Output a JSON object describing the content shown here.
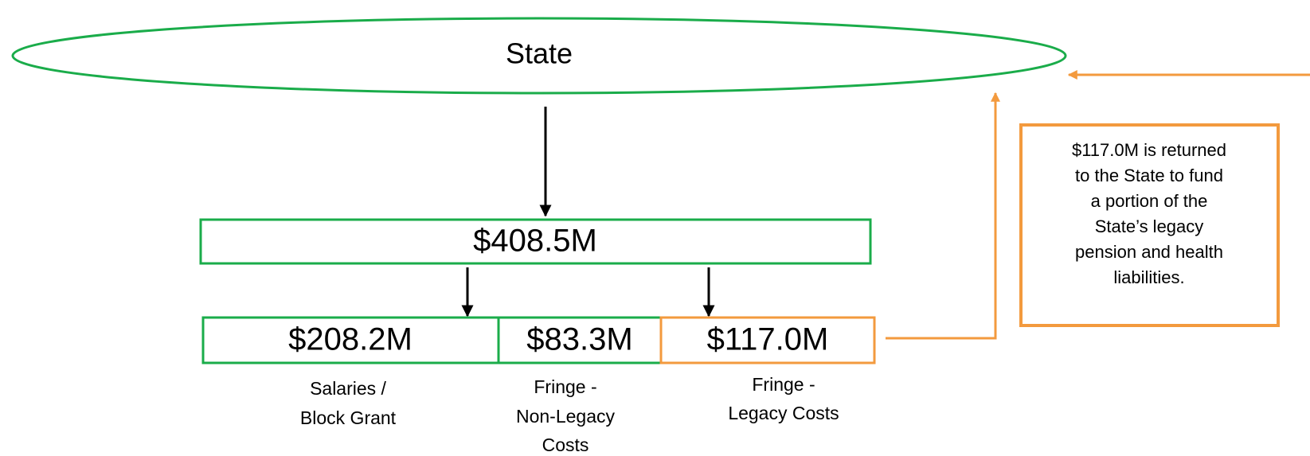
{
  "nodes": [
    {
      "id": "state",
      "label": "State"
    },
    {
      "id": "total",
      "label": "$408.5M"
    },
    {
      "id": "salaries",
      "label": "$208.2M",
      "caption": [
        "Salaries /",
        "Block Grant"
      ]
    },
    {
      "id": "nonlegacy",
      "label": "$83.3M",
      "caption": [
        "Fringe -",
        "Non-Legacy",
        "Costs"
      ]
    },
    {
      "id": "legacy",
      "label": "$117.0M",
      "caption": [
        "Fringe -",
        "Legacy Costs"
      ]
    }
  ],
  "note": [
    "$117.0M is returned",
    "to the State to fund",
    "a portion of the",
    "State’s legacy",
    "pension and health",
    "liabilities."
  ]
}
